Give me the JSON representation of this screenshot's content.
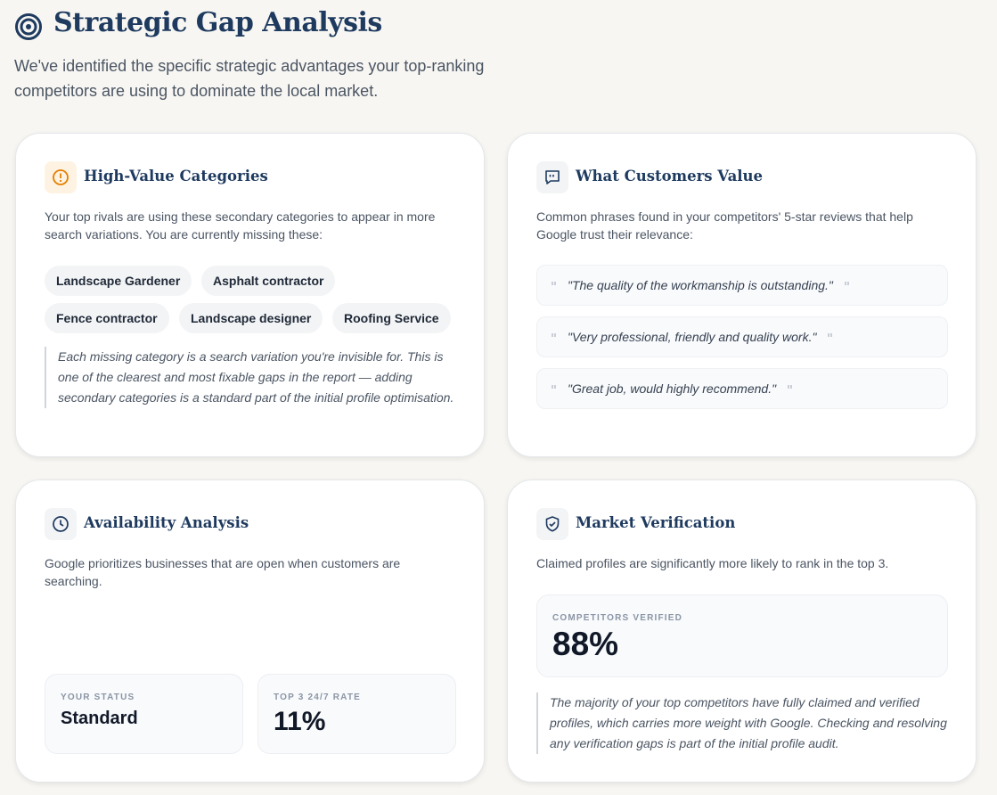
{
  "header": {
    "title": "Strategic Gap Analysis",
    "subtitle": "We've identified the specific strategic advantages your top-ranking competitors are using to dominate the local market."
  },
  "cards": [
    {
      "title": "High-Value Categories",
      "description": "Your top rivals are using these secondary categories to appear in more search variations. You are currently missing these:",
      "tags": [
        "Landscape Gardener",
        "Asphalt contractor",
        "Fence contractor",
        "Landscape designer",
        "Roofing Service"
      ],
      "note": "Each missing category is a search variation you're invisible for. This is one of the clearest and most fixable gaps in the report — adding secondary categories is a standard part of the initial profile optimisation."
    },
    {
      "title": "What Customers Value",
      "description": "Common phrases found in your competitors' 5-star reviews that help Google trust their relevance:",
      "quotes": [
        "\"The quality of the workmanship is outstanding.\"",
        "\"Very professional, friendly and quality work.\"",
        "\"Great job, would highly recommend.\""
      ]
    },
    {
      "title": "Availability Analysis",
      "description": "Google prioritizes businesses that are open when customers are searching.",
      "stats": [
        {
          "label": "YOUR STATUS",
          "value": "Standard"
        },
        {
          "label": "TOP 3 24/7 RATE",
          "value": "11%"
        }
      ]
    },
    {
      "title": "Market Verification",
      "description": "Claimed profiles are significantly more likely to rank in the top 3.",
      "stats": [
        {
          "label": "COMPETITORS VERIFIED",
          "value": "88%"
        }
      ],
      "note": "The majority of your top competitors have fully claimed and verified profiles, which carries more weight with Google. Checking and resolving any verification gaps is part of the initial profile audit."
    }
  ]
}
